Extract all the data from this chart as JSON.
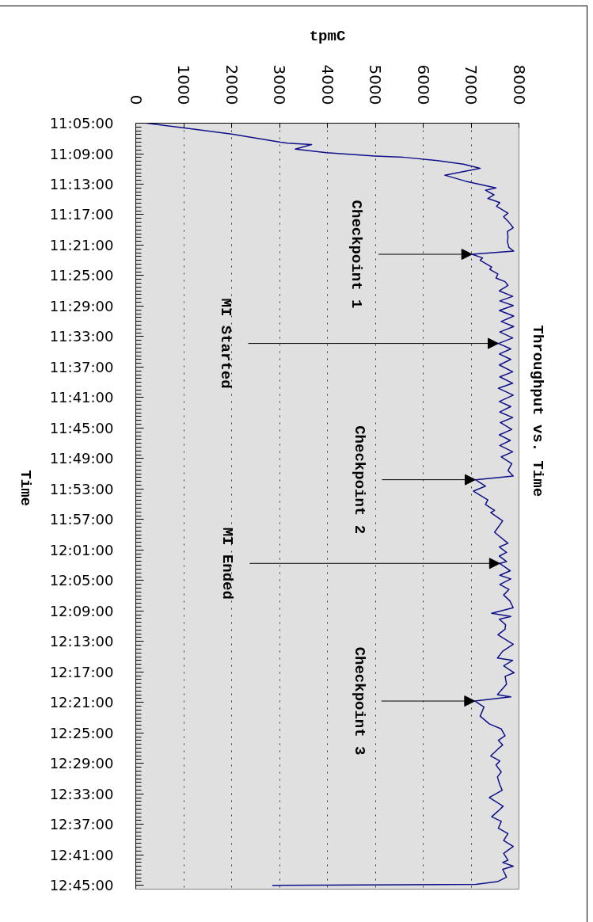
{
  "chart_data": {
    "type": "line",
    "title": "Throughput vs. Time",
    "xlabel": "tpmC",
    "ylabel": "Time",
    "color": "#10108a",
    "x": [
      230,
      880,
      2000,
      3020,
      3170,
      3670,
      3330,
      3980,
      4990,
      5610,
      6300,
      6840,
      7190,
      6450,
      6880,
      7520,
      7300,
      7480,
      7350,
      7600,
      7530,
      7770,
      7680,
      7790,
      7880,
      7760,
      7770,
      7760,
      7790,
      7890,
      7020,
      7240,
      7190,
      7430,
      7390,
      7560,
      7520,
      7710,
      7770,
      7590,
      7870,
      7600,
      7880,
      7590,
      7890,
      7630,
      7890,
      7600,
      7870,
      7570,
      7830,
      7590,
      7830,
      7590,
      7870,
      7600,
      7870,
      7570,
      7880,
      7590,
      7830,
      7600,
      7870,
      7610,
      7850,
      7590,
      7820,
      7600,
      7870,
      7630,
      7850,
      7770,
      7880,
      7090,
      7300,
      7050,
      7350,
      7300,
      7490,
      7410,
      7660,
      7490,
      7770,
      7590,
      7740,
      7590,
      7740,
      7600,
      7820,
      7600,
      7830,
      7600,
      7790,
      7680,
      7810,
      7880,
      7430,
      7830,
      7590,
      7720,
      7710,
      7560,
      7880,
      7660,
      7550,
      7870,
      7680,
      7900,
      7710,
      7740,
      7550,
      7830,
      7080,
      7270,
      7190,
      7380,
      7630,
      7710,
      7570,
      7660,
      7560,
      7410,
      7600,
      7520,
      7630,
      7550,
      7600,
      7650,
      7380,
      7670,
      7560,
      7430,
      7630,
      7570,
      7770,
      7680,
      7880,
      7680,
      7770,
      7660,
      7880,
      7660,
      7740,
      7550,
      7100,
      2850
    ],
    "values": [
      11.0833,
      11.092,
      11.107,
      11.125,
      11.127,
      11.13,
      11.14,
      11.148,
      11.155,
      11.158,
      11.165,
      11.173,
      11.182,
      11.197,
      11.21,
      11.225,
      11.23,
      11.24,
      11.248,
      11.257,
      11.265,
      11.28,
      11.288,
      11.3,
      11.312,
      11.32,
      11.332,
      11.343,
      11.355,
      11.363,
      11.37,
      11.378,
      11.383,
      11.398,
      11.403,
      11.413,
      11.422,
      11.43,
      11.438,
      11.45,
      11.462,
      11.472,
      11.482,
      11.493,
      11.505,
      11.517,
      11.528,
      11.54,
      11.553,
      11.565,
      11.577,
      11.588,
      11.6,
      11.612,
      11.627,
      11.638,
      11.652,
      11.663,
      11.678,
      11.692,
      11.703,
      11.715,
      11.727,
      11.738,
      11.753,
      11.765,
      11.777,
      11.788,
      11.802,
      11.813,
      11.828,
      11.843,
      11.855,
      11.863,
      11.877,
      11.888,
      11.907,
      11.917,
      11.93,
      11.935,
      11.953,
      11.978,
      12.002,
      12.01,
      12.022,
      12.03,
      12.042,
      12.046,
      12.062,
      12.072,
      12.08,
      12.092,
      12.103,
      12.115,
      12.128,
      12.143,
      12.155,
      12.162,
      12.168,
      12.18,
      12.19,
      12.202,
      12.223,
      12.238,
      12.253,
      12.258,
      12.27,
      12.285,
      12.293,
      12.31,
      12.333,
      12.338,
      12.347,
      12.36,
      12.38,
      12.397,
      12.408,
      12.423,
      12.433,
      12.443,
      12.452,
      12.467,
      12.478,
      12.487,
      12.502,
      12.513,
      12.53,
      12.542,
      12.558,
      12.577,
      12.588,
      12.6,
      12.61,
      12.625,
      12.637,
      12.652,
      12.665,
      12.68,
      12.695,
      12.7,
      12.708,
      12.715,
      12.732,
      12.742,
      12.748,
      12.75
    ],
    "xlim": [
      0,
      8000
    ],
    "ylim": [
      12.7583,
      11.0833
    ],
    "xticks": [
      0,
      1000,
      2000,
      3000,
      4000,
      5000,
      6000,
      7000,
      8000
    ],
    "yticks": [
      {
        "value": 11.0833,
        "label": "11:05:00"
      },
      {
        "value": 11.15,
        "label": "11:09:00"
      },
      {
        "value": 11.2167,
        "label": "11:13:00"
      },
      {
        "value": 11.2833,
        "label": "11:17:00"
      },
      {
        "value": 11.35,
        "label": "11:21:00"
      },
      {
        "value": 11.4167,
        "label": "11:25:00"
      },
      {
        "value": 11.4833,
        "label": "11:29:00"
      },
      {
        "value": 11.55,
        "label": "11:33:00"
      },
      {
        "value": 11.6167,
        "label": "11:37:00"
      },
      {
        "value": 11.6833,
        "label": "11:41:00"
      },
      {
        "value": 11.75,
        "label": "11:45:00"
      },
      {
        "value": 11.8167,
        "label": "11:49:00"
      },
      {
        "value": 11.8833,
        "label": "11:53:00"
      },
      {
        "value": 11.95,
        "label": "11:57:00"
      },
      {
        "value": 12.0167,
        "label": "12:01:00"
      },
      {
        "value": 12.0833,
        "label": "12:05:00"
      },
      {
        "value": 12.15,
        "label": "12:09:00"
      },
      {
        "value": 12.2167,
        "label": "12:13:00"
      },
      {
        "value": 12.2833,
        "label": "12:17:00"
      },
      {
        "value": 12.35,
        "label": "12:21:00"
      },
      {
        "value": 12.4167,
        "label": "12:25:00"
      },
      {
        "value": 12.4833,
        "label": "12:29:00"
      },
      {
        "value": 12.55,
        "label": "12:33:00"
      },
      {
        "value": 12.6167,
        "label": "12:37:00"
      },
      {
        "value": 12.6833,
        "label": "12:41:00"
      },
      {
        "value": 12.75,
        "label": "12:45:00"
      },
      {
        "value": 11.0917,
        "label": null
      },
      {
        "value": 11.1,
        "label": null
      },
      {
        "value": 11.1083,
        "label": null
      },
      {
        "value": 11.1167,
        "label": null
      },
      {
        "value": 11.125,
        "label": null
      },
      {
        "value": 11.1333,
        "label": null
      },
      {
        "value": 11.1417,
        "label": null
      },
      {
        "value": 11.1583,
        "label": null
      },
      {
        "value": 11.1667,
        "label": null
      },
      {
        "value": 11.175,
        "label": null
      },
      {
        "value": 11.1833,
        "label": null
      },
      {
        "value": 11.1917,
        "label": null
      },
      {
        "value": 11.2,
        "label": null
      },
      {
        "value": 11.2083,
        "label": null
      },
      {
        "value": 11.225,
        "label": null
      },
      {
        "value": 11.2333,
        "label": null
      },
      {
        "value": 11.2417,
        "label": null
      },
      {
        "value": 11.25,
        "label": null
      },
      {
        "value": 11.2583,
        "label": null
      },
      {
        "value": 11.2667,
        "label": null
      },
      {
        "value": 11.275,
        "label": null
      },
      {
        "value": 11.2917,
        "label": null
      },
      {
        "value": 11.3,
        "label": null
      },
      {
        "value": 11.3083,
        "label": null
      },
      {
        "value": 11.3167,
        "label": null
      },
      {
        "value": 11.325,
        "label": null
      },
      {
        "value": 11.3333,
        "label": null
      },
      {
        "value": 11.3417,
        "label": null
      },
      {
        "value": 11.3583,
        "label": null
      },
      {
        "value": 11.3667,
        "label": null
      },
      {
        "value": 11.375,
        "label": null
      },
      {
        "value": 11.3833,
        "label": null
      },
      {
        "value": 11.3917,
        "label": null
      },
      {
        "value": 11.4,
        "label": null
      },
      {
        "value": 11.4083,
        "label": null
      },
      {
        "value": 11.425,
        "label": null
      },
      {
        "value": 11.4333,
        "label": null
      },
      {
        "value": 11.4417,
        "label": null
      },
      {
        "value": 11.45,
        "label": null
      },
      {
        "value": 11.4583,
        "label": null
      },
      {
        "value": 11.4667,
        "label": null
      },
      {
        "value": 11.475,
        "label": null
      },
      {
        "value": 11.4917,
        "label": null
      },
      {
        "value": 11.5,
        "label": null
      },
      {
        "value": 11.5083,
        "label": null
      },
      {
        "value": 11.5167,
        "label": null
      },
      {
        "value": 11.525,
        "label": null
      },
      {
        "value": 11.5333,
        "label": null
      },
      {
        "value": 11.5417,
        "label": null
      },
      {
        "value": 11.5583,
        "label": null
      },
      {
        "value": 11.5667,
        "label": null
      },
      {
        "value": 11.575,
        "label": null
      },
      {
        "value": 11.5833,
        "label": null
      },
      {
        "value": 11.5917,
        "label": null
      },
      {
        "value": 11.6,
        "label": null
      },
      {
        "value": 11.6083,
        "label": null
      },
      {
        "value": 11.625,
        "label": null
      },
      {
        "value": 11.6333,
        "label": null
      },
      {
        "value": 11.6417,
        "label": null
      },
      {
        "value": 11.65,
        "label": null
      },
      {
        "value": 11.6583,
        "label": null
      },
      {
        "value": 11.6667,
        "label": null
      },
      {
        "value": 11.675,
        "label": null
      },
      {
        "value": 11.6917,
        "label": null
      },
      {
        "value": 11.7,
        "label": null
      },
      {
        "value": 11.7083,
        "label": null
      },
      {
        "value": 11.7167,
        "label": null
      },
      {
        "value": 11.725,
        "label": null
      },
      {
        "value": 11.7333,
        "label": null
      },
      {
        "value": 11.7417,
        "label": null
      },
      {
        "value": 11.7583,
        "label": null
      },
      {
        "value": 11.7667,
        "label": null
      },
      {
        "value": 11.775,
        "label": null
      },
      {
        "value": 11.7833,
        "label": null
      },
      {
        "value": 11.7917,
        "label": null
      },
      {
        "value": 11.8,
        "label": null
      },
      {
        "value": 11.8083,
        "label": null
      },
      {
        "value": 11.825,
        "label": null
      },
      {
        "value": 11.8333,
        "label": null
      },
      {
        "value": 11.8417,
        "label": null
      },
      {
        "value": 11.85,
        "label": null
      },
      {
        "value": 11.8583,
        "label": null
      },
      {
        "value": 11.8667,
        "label": null
      },
      {
        "value": 11.875,
        "label": null
      },
      {
        "value": 11.8917,
        "label": null
      },
      {
        "value": 11.9,
        "label": null
      },
      {
        "value": 11.9083,
        "label": null
      },
      {
        "value": 11.9167,
        "label": null
      },
      {
        "value": 11.925,
        "label": null
      },
      {
        "value": 11.9333,
        "label": null
      },
      {
        "value": 11.9417,
        "label": null
      },
      {
        "value": 11.9583,
        "label": null
      },
      {
        "value": 11.9667,
        "label": null
      },
      {
        "value": 11.975,
        "label": null
      },
      {
        "value": 11.9833,
        "label": null
      },
      {
        "value": 11.9917,
        "label": null
      },
      {
        "value": 12.0,
        "label": null
      },
      {
        "value": 12.0083,
        "label": null
      },
      {
        "value": 12.025,
        "label": null
      },
      {
        "value": 12.0333,
        "label": null
      },
      {
        "value": 12.0417,
        "label": null
      },
      {
        "value": 12.05,
        "label": null
      },
      {
        "value": 12.0583,
        "label": null
      },
      {
        "value": 12.0667,
        "label": null
      },
      {
        "value": 12.075,
        "label": null
      },
      {
        "value": 12.0917,
        "label": null
      },
      {
        "value": 12.1,
        "label": null
      },
      {
        "value": 12.1083,
        "label": null
      },
      {
        "value": 12.1167,
        "label": null
      },
      {
        "value": 12.125,
        "label": null
      },
      {
        "value": 12.1333,
        "label": null
      },
      {
        "value": 12.1417,
        "label": null
      },
      {
        "value": 12.1583,
        "label": null
      },
      {
        "value": 12.1667,
        "label": null
      },
      {
        "value": 12.175,
        "label": null
      },
      {
        "value": 12.1833,
        "label": null
      },
      {
        "value": 12.1917,
        "label": null
      },
      {
        "value": 12.2,
        "label": null
      },
      {
        "value": 12.2083,
        "label": null
      },
      {
        "value": 12.225,
        "label": null
      },
      {
        "value": 12.2333,
        "label": null
      },
      {
        "value": 12.2417,
        "label": null
      },
      {
        "value": 12.25,
        "label": null
      },
      {
        "value": 12.2583,
        "label": null
      },
      {
        "value": 12.2667,
        "label": null
      },
      {
        "value": 12.275,
        "label": null
      },
      {
        "value": 12.2917,
        "label": null
      },
      {
        "value": 12.3,
        "label": null
      },
      {
        "value": 12.3083,
        "label": null
      },
      {
        "value": 12.3167,
        "label": null
      },
      {
        "value": 12.325,
        "label": null
      },
      {
        "value": 12.3333,
        "label": null
      },
      {
        "value": 12.3417,
        "label": null
      },
      {
        "value": 12.3583,
        "label": null
      },
      {
        "value": 12.3667,
        "label": null
      },
      {
        "value": 12.375,
        "label": null
      },
      {
        "value": 12.3833,
        "label": null
      },
      {
        "value": 12.3917,
        "label": null
      },
      {
        "value": 12.4,
        "label": null
      },
      {
        "value": 12.4083,
        "label": null
      },
      {
        "value": 12.425,
        "label": null
      },
      {
        "value": 12.4333,
        "label": null
      },
      {
        "value": 12.4417,
        "label": null
      },
      {
        "value": 12.45,
        "label": null
      },
      {
        "value": 12.4583,
        "label": null
      },
      {
        "value": 12.4667,
        "label": null
      },
      {
        "value": 12.475,
        "label": null
      },
      {
        "value": 12.4917,
        "label": null
      },
      {
        "value": 12.5,
        "label": null
      },
      {
        "value": 12.5083,
        "label": null
      },
      {
        "value": 12.5167,
        "label": null
      },
      {
        "value": 12.525,
        "label": null
      },
      {
        "value": 12.5333,
        "label": null
      },
      {
        "value": 12.5417,
        "label": null
      },
      {
        "value": 12.5583,
        "label": null
      },
      {
        "value": 12.5667,
        "label": null
      },
      {
        "value": 12.575,
        "label": null
      },
      {
        "value": 12.5833,
        "label": null
      },
      {
        "value": 12.5917,
        "label": null
      },
      {
        "value": 12.6,
        "label": null
      },
      {
        "value": 12.6083,
        "label": null
      },
      {
        "value": 12.625,
        "label": null
      },
      {
        "value": 12.6333,
        "label": null
      },
      {
        "value": 12.6417,
        "label": null
      },
      {
        "value": 12.65,
        "label": null
      },
      {
        "value": 12.6583,
        "label": null
      },
      {
        "value": 12.6667,
        "label": null
      },
      {
        "value": 12.675,
        "label": null
      },
      {
        "value": 12.6917,
        "label": null
      },
      {
        "value": 12.7,
        "label": null
      },
      {
        "value": 12.7083,
        "label": null
      },
      {
        "value": 12.7167,
        "label": null
      },
      {
        "value": 12.725,
        "label": null
      },
      {
        "value": 12.7333,
        "label": null
      },
      {
        "value": 12.7417,
        "label": null
      }
    ],
    "grid": "x",
    "annotations": [
      {
        "text": "Checkpoint 1",
        "x": 7020,
        "y": 11.37
      },
      {
        "text": "MI Started",
        "x": 7570,
        "y": 11.565
      },
      {
        "text": "Checkpoint 2",
        "x": 7090,
        "y": 11.863
      },
      {
        "text": "MI Ended",
        "x": 7600,
        "y": 12.046
      },
      {
        "text": "Checkpoint 3",
        "x": 7080,
        "y": 12.347
      }
    ]
  }
}
